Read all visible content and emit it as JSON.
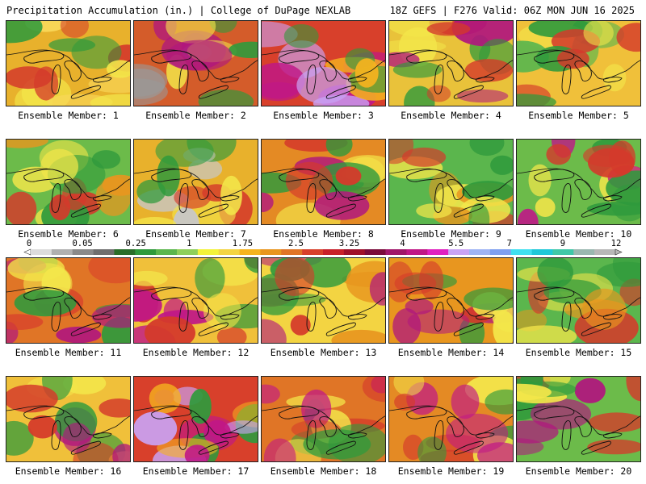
{
  "header": {
    "left_title": "Precipitation Accumulation (in.) | College of DuPage NEXLAB",
    "right_title": "18Z GEFS | F276 Valid: 06Z MON JUN 16 2025"
  },
  "members": [
    {
      "label": "Ensemble Member: 1",
      "base": "#e8b12c",
      "blobs": [
        "#f3e64a",
        "#d43a2b",
        "#2f9a3c",
        "#f8d85a"
      ]
    },
    {
      "label": "Ensemble Member: 2",
      "base": "#d45c2a",
      "blobs": [
        "#9a9a9a",
        "#b0167e",
        "#2f9a3c",
        "#f3e64a"
      ]
    },
    {
      "label": "Ensemble Member: 3",
      "base": "#d8402b",
      "blobs": [
        "#c01787",
        "#c9a3f5",
        "#f5b31f",
        "#2f9a3c"
      ]
    },
    {
      "label": "Ensemble Member: 4",
      "base": "#e9c23a",
      "blobs": [
        "#2f9a3c",
        "#d43a2b",
        "#b0167e",
        "#f3e64a"
      ]
    },
    {
      "label": "Ensemble Member: 5",
      "base": "#f0c03a",
      "blobs": [
        "#2f9a3c",
        "#d43a2b",
        "#f3e64a",
        "#5bb64d"
      ]
    },
    {
      "label": "Ensemble Member: 6",
      "base": "#6cbb4a",
      "blobs": [
        "#f3e64a",
        "#d43a2b",
        "#2f9a3c",
        "#e8961f"
      ]
    },
    {
      "label": "Ensemble Member: 7",
      "base": "#e8b12c",
      "blobs": [
        "#c7c7c7",
        "#2f9a3c",
        "#d43a2b",
        "#f3e64a"
      ]
    },
    {
      "label": "Ensemble Member: 8",
      "base": "#e48a24",
      "blobs": [
        "#2f9a3c",
        "#d43a2b",
        "#f3e64a",
        "#b0167e"
      ]
    },
    {
      "label": "Ensemble Member: 9",
      "base": "#5bb64d",
      "blobs": [
        "#2f9a3c",
        "#f3e64a",
        "#d43a2b",
        "#e8961f"
      ]
    },
    {
      "label": "Ensemble Member: 10",
      "base": "#6cbb4a",
      "blobs": [
        "#2f9a3c",
        "#d43a2b",
        "#f3e64a",
        "#c01787"
      ]
    },
    {
      "label": "Ensemble Member: 11",
      "base": "#e07526",
      "blobs": [
        "#b0167e",
        "#2f9a3c",
        "#d8402b",
        "#f3e64a"
      ]
    },
    {
      "label": "Ensemble Member: 12",
      "base": "#f0c03a",
      "blobs": [
        "#c01787",
        "#d43a2b",
        "#2f9a3c",
        "#f3e64a"
      ]
    },
    {
      "label": "Ensemble Member: 13",
      "base": "#f3d442",
      "blobs": [
        "#2f9a3c",
        "#d43a2b",
        "#e8961f",
        "#b0167e"
      ]
    },
    {
      "label": "Ensemble Member: 14",
      "base": "#e8961f",
      "blobs": [
        "#d43a2b",
        "#b0167e",
        "#f3e64a",
        "#2f9a3c"
      ]
    },
    {
      "label": "Ensemble Member: 15",
      "base": "#5bb64d",
      "blobs": [
        "#2f9a3c",
        "#f3e64a",
        "#d43a2b",
        "#e8961f"
      ]
    },
    {
      "label": "Ensemble Member: 16",
      "base": "#f0c03a",
      "blobs": [
        "#2f9a3c",
        "#d43a2b",
        "#f3e64a",
        "#b0167e"
      ]
    },
    {
      "label": "Ensemble Member: 17",
      "base": "#d8402b",
      "blobs": [
        "#c01787",
        "#c9a3f5",
        "#2f9a3c",
        "#f5b31f"
      ]
    },
    {
      "label": "Ensemble Member: 18",
      "base": "#e07526",
      "blobs": [
        "#2f9a3c",
        "#c01787",
        "#d43a2b",
        "#f3e64a"
      ]
    },
    {
      "label": "Ensemble Member: 19",
      "base": "#e48a24",
      "blobs": [
        "#c01787",
        "#d43a2b",
        "#2f9a3c",
        "#f3e64a"
      ]
    },
    {
      "label": "Ensemble Member: 20",
      "base": "#6cbb4a",
      "blobs": [
        "#d43a2b",
        "#b0167e",
        "#2f9a3c",
        "#f3e64a"
      ]
    }
  ],
  "colorbar": {
    "tick_labels": [
      "0",
      "0.05",
      "0.25",
      "1",
      "1.75",
      "2.5",
      "3.25",
      "4",
      "5.5",
      "7",
      "9",
      "12"
    ],
    "colors": [
      "#dcdcdc",
      "#b0b0b0",
      "#8a8a8a",
      "#6f6f6f",
      "#2a6e2a",
      "#2f9a3c",
      "#5bb64d",
      "#8fcf5a",
      "#f3f23a",
      "#f3d442",
      "#f5b31f",
      "#e8961f",
      "#e07526",
      "#d8402b",
      "#c8202a",
      "#a0102a",
      "#7a0a3a",
      "#a0166a",
      "#c01787",
      "#e020c0",
      "#c9a3f5",
      "#9fb4f5",
      "#7fa0f0",
      "#40e0f0",
      "#20c8d8",
      "#40c8a8",
      "#9ab8b0",
      "#b8b8b8"
    ]
  }
}
